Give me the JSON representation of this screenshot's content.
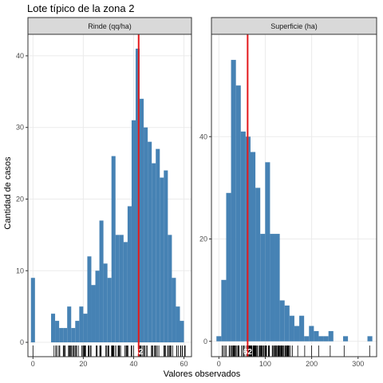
{
  "title": "Lote típico de la zona 2",
  "xlabel": "Valores observados",
  "ylabel": "Cantidad de casos",
  "colors": {
    "bar": "#4682B4",
    "vline": "#E31A1C",
    "strip": "#D9D9D9",
    "grid": "#EBEBEB",
    "rug": "#000000",
    "panel_border": "#333333"
  },
  "chart_data": [
    {
      "type": "bar",
      "panel": "Rinde (qq/ha)",
      "strip_label": "Rinde (qq/ha)",
      "x_ticks": [
        0,
        20,
        40,
        60
      ],
      "y_ticks": [
        0,
        10,
        20,
        30,
        40
      ],
      "xlim": [
        -2,
        63
      ],
      "ylim": [
        -2,
        43
      ],
      "bin_width": 1.6,
      "bin_centers": [
        0,
        1.6,
        3.2,
        4.8,
        6.4,
        8,
        9.6,
        11.2,
        12.8,
        14.4,
        16,
        17.6,
        19.2,
        20.8,
        22.4,
        24,
        25.6,
        27.2,
        28.8,
        30.4,
        32,
        33.6,
        35.2,
        36.8,
        38.4,
        40,
        41.6,
        43.2,
        44.8,
        46.4,
        48,
        49.6,
        51.2,
        52.8,
        54.4,
        56,
        57.6,
        59.2,
        60.8
      ],
      "counts": [
        9,
        0,
        0,
        0,
        0,
        4,
        3,
        2,
        2,
        5,
        2,
        3,
        5,
        4,
        12,
        8,
        10,
        17,
        11,
        9,
        26,
        15,
        15,
        14,
        19,
        31,
        41,
        34,
        30,
        28,
        25,
        27,
        23,
        24,
        15,
        9,
        5,
        3,
        0
      ],
      "vline": 42,
      "vline_label": "42",
      "rug_range": [
        8,
        61
      ],
      "rug_extra": [
        0
      ]
    },
    {
      "type": "bar",
      "panel": "Superficie (ha)",
      "strip_label": "Superficie (ha)",
      "x_ticks": [
        0,
        100,
        200,
        300
      ],
      "y_ticks": [
        0,
        20,
        40
      ],
      "xlim": [
        -16,
        340
      ],
      "ylim": [
        -3,
        60
      ],
      "bin_width": 10.5,
      "bin_centers": [
        0,
        10.5,
        21,
        31.5,
        42,
        52.5,
        63,
        73.5,
        84,
        94.5,
        105,
        115.5,
        126,
        136.5,
        147,
        157.5,
        168,
        178.5,
        189,
        199.5,
        210,
        220.5,
        231,
        241.5,
        252,
        262.5,
        273,
        283.5,
        294,
        304.5,
        315,
        325.5
      ],
      "counts": [
        1,
        12,
        29,
        55,
        50,
        41,
        40,
        37,
        30,
        21,
        35,
        21,
        21,
        8,
        7,
        5,
        3,
        5,
        1,
        3,
        2,
        1,
        1,
        2,
        0,
        0,
        1,
        0,
        0,
        0,
        0,
        1
      ],
      "vline": 62,
      "vline_label": "62",
      "rug_range": [
        5,
        160
      ],
      "rug_extra": [
        170,
        185,
        200,
        215,
        240,
        270,
        325
      ]
    }
  ]
}
